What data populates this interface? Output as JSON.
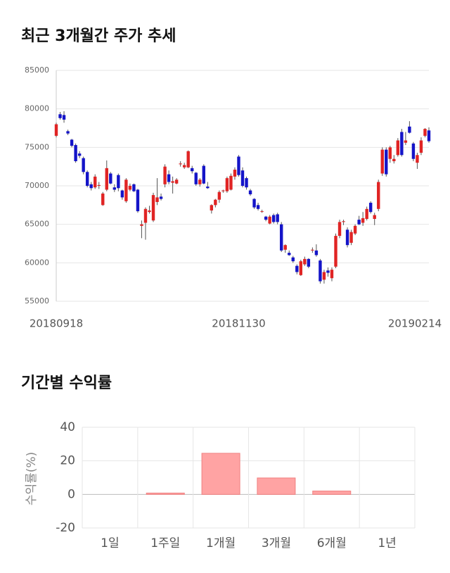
{
  "chart_data": [
    {
      "type": "candlestick",
      "title": "최근 3개월간 주가 추세",
      "categories": [
        "20180918",
        null,
        null,
        null,
        null,
        null,
        null,
        null,
        null,
        null,
        null,
        null,
        null,
        null,
        null,
        null,
        null,
        null,
        null,
        null,
        null,
        null,
        null,
        null,
        null,
        null,
        null,
        null,
        null,
        null,
        null,
        null,
        null,
        null,
        null,
        null,
        null,
        null,
        null,
        null,
        null,
        null,
        null,
        null,
        null,
        null,
        null,
        "20181130",
        null,
        null,
        null,
        null,
        null,
        null,
        null,
        null,
        null,
        null,
        null,
        null,
        null,
        null,
        null,
        null,
        null,
        null,
        null,
        null,
        null,
        null,
        null,
        null,
        null,
        null,
        null,
        null,
        null,
        null,
        null,
        null,
        null,
        null,
        null,
        null,
        null,
        null,
        null,
        null,
        null,
        null,
        null,
        null,
        null,
        null,
        null,
        null,
        "20190214"
      ],
      "open": [
        76500,
        79300,
        79200,
        77100,
        76000,
        75300,
        74200,
        73600,
        71800,
        70200,
        69800,
        70000,
        67500,
        69500,
        71600,
        69800,
        71400,
        69400,
        68000,
        69500,
        70200,
        69500,
        64800,
        65200,
        66600,
        65500,
        67900,
        68600,
        70200,
        71500,
        70400,
        70300,
        72800,
        72400,
        72400,
        72300,
        71700,
        70200,
        72600,
        69900,
        66800,
        67500,
        68200,
        69300,
        69300,
        69500,
        71200,
        73800,
        72000,
        71000,
        69400,
        68300,
        67500,
        66700,
        66000,
        65100,
        66200,
        66300,
        65000,
        61700,
        61300,
        60700,
        59600,
        58400,
        59800,
        60500,
        61600,
        61600,
        60300,
        57800,
        59000,
        58000,
        59500,
        63500,
        65300,
        64300,
        62600,
        63800,
        65600,
        65200,
        65700,
        67800,
        65700,
        67000,
        71600,
        74700,
        73500,
        73200,
        74000,
        77000,
        75600,
        77700,
        75500,
        73000,
        74300,
        76500,
        77200
      ],
      "high": [
        78200,
        79600,
        79700,
        77300,
        76100,
        75500,
        74500,
        73800,
        72000,
        70500,
        71500,
        70500,
        69200,
        73300,
        71800,
        70200,
        71600,
        69500,
        71000,
        70300,
        70300,
        69600,
        65500,
        67200,
        67400,
        69100,
        71000,
        69000,
        72800,
        72000,
        71200,
        71000,
        73200,
        73000,
        74600,
        72600,
        71800,
        71000,
        72800,
        70500,
        67600,
        68300,
        69400,
        69500,
        71200,
        71600,
        72400,
        74000,
        72400,
        71200,
        69600,
        68400,
        67800,
        66900,
        66100,
        66200,
        66400,
        66500,
        65300,
        62400,
        61600,
        60900,
        59800,
        60400,
        60800,
        60600,
        62000,
        62400,
        60500,
        59100,
        59400,
        59400,
        63800,
        65600,
        65600,
        64600,
        64300,
        65000,
        66100,
        66600,
        67300,
        68000,
        66500,
        70800,
        75000,
        75000,
        75200,
        74000,
        76200,
        77400,
        77000,
        78400,
        75700,
        74300,
        76300,
        77500,
        77600
      ],
      "low": [
        76300,
        78600,
        78200,
        76600,
        75000,
        73000,
        73600,
        71500,
        69800,
        69400,
        69600,
        69600,
        67400,
        69300,
        70200,
        69200,
        69300,
        68200,
        67800,
        69300,
        69200,
        66500,
        63200,
        63000,
        66400,
        65300,
        67500,
        68100,
        69800,
        70200,
        69000,
        70200,
        72500,
        72200,
        72300,
        71600,
        70000,
        69900,
        70200,
        69600,
        66400,
        67200,
        67800,
        69100,
        69100,
        69400,
        70800,
        71200,
        69800,
        69500,
        68700,
        67000,
        66800,
        66500,
        65400,
        65000,
        65100,
        65000,
        61400,
        61300,
        60900,
        60000,
        58500,
        58300,
        59600,
        59300,
        61300,
        60800,
        57300,
        57300,
        58200,
        57600,
        59300,
        63200,
        64900,
        62000,
        62300,
        63600,
        64900,
        64800,
        65500,
        66400,
        64900,
        66700,
        71300,
        71200,
        73000,
        72900,
        73800,
        73800,
        75300,
        76800,
        73200,
        72200,
        74000,
        76300,
        75600
      ],
      "close": [
        78000,
        78800,
        78600,
        76800,
        75200,
        73200,
        73900,
        71800,
        70000,
        69700,
        71200,
        70100,
        69000,
        72300,
        70300,
        69500,
        69700,
        68500,
        70800,
        70000,
        69300,
        66700,
        65000,
        67000,
        66800,
        68800,
        68500,
        68300,
        72500,
        70500,
        70600,
        70800,
        72900,
        72700,
        74500,
        71900,
        70200,
        70800,
        70300,
        69700,
        67500,
        68200,
        69200,
        69400,
        71000,
        71300,
        72100,
        71400,
        70000,
        69800,
        68900,
        67200,
        67000,
        66700,
        65600,
        66000,
        65300,
        65300,
        61600,
        62300,
        61000,
        60200,
        58800,
        60200,
        60500,
        59500,
        61700,
        61000,
        57600,
        58800,
        58700,
        59100,
        63500,
        65300,
        65400,
        62300,
        64000,
        64800,
        65000,
        65800,
        67000,
        66600,
        66200,
        70500,
        74700,
        71500,
        75000,
        73500,
        75900,
        74000,
        75900,
        76900,
        73500,
        74000,
        75900,
        77400,
        75800
      ],
      "up_color": "#e02424",
      "down_color": "#1414c8",
      "ylim": [
        55000,
        85000
      ],
      "yticks": [
        55000,
        60000,
        65000,
        70000,
        75000,
        80000,
        85000
      ],
      "grid": true
    },
    {
      "type": "bar",
      "title": "기간별 수익률",
      "y_label": "수익률(%)",
      "categories": [
        "1일",
        "1주일",
        "1개월",
        "3개월",
        "6개월",
        "1년"
      ],
      "values": [
        0,
        0.8,
        24.5,
        9.8,
        2.0,
        0
      ],
      "color": "#ffa3a3",
      "ylim": [
        -20,
        40
      ],
      "yticks": [
        -20,
        0,
        20,
        40
      ],
      "grid": true
    }
  ]
}
